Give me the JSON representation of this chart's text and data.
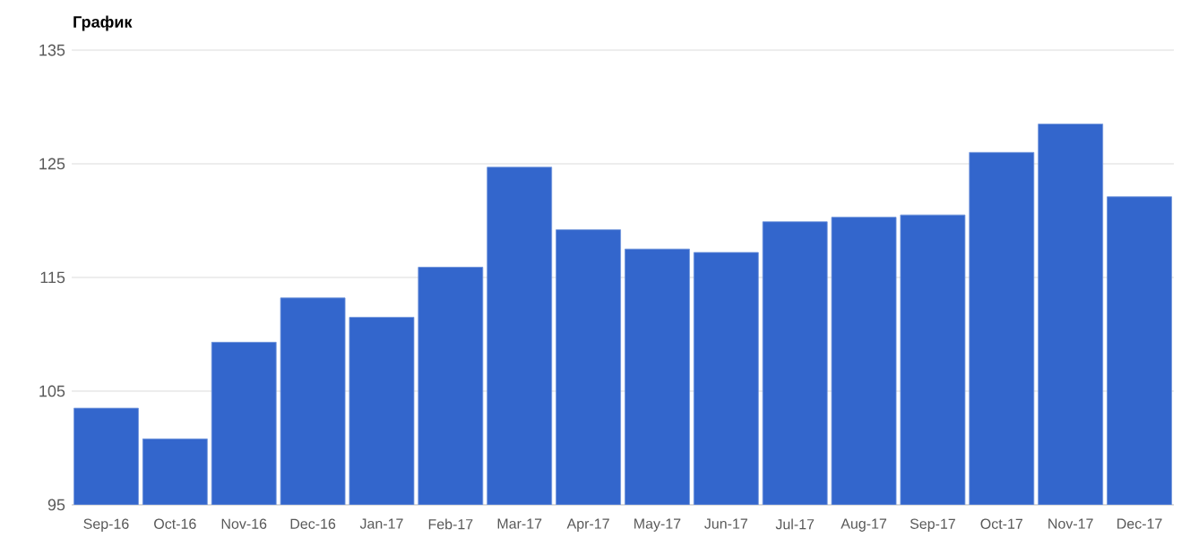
{
  "chart_data": {
    "type": "bar",
    "title": "График",
    "categories": [
      "Sep-16",
      "Oct-16",
      "Nov-16",
      "Dec-16",
      "Jan-17",
      "Feb-17",
      "Mar-17",
      "Apr-17",
      "May-17",
      "Jun-17",
      "Jul-17",
      "Aug-17",
      "Sep-17",
      "Oct-17",
      "Nov-17",
      "Dec-17"
    ],
    "values": [
      103.5,
      100.8,
      109.3,
      113.2,
      111.5,
      115.9,
      124.7,
      119.2,
      117.5,
      117.2,
      119.9,
      120.3,
      120.5,
      126.0,
      128.5,
      122.1
    ],
    "color": "#3366cc",
    "ylim": [
      95,
      135
    ],
    "yticks": [
      95,
      105,
      115,
      125,
      135
    ],
    "grid": "y"
  }
}
